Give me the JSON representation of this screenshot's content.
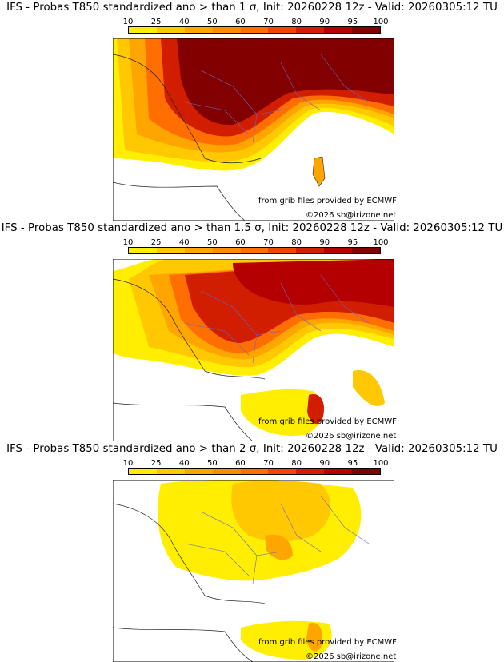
{
  "legend": {
    "ticks": [
      "10",
      "25",
      "40",
      "50",
      "60",
      "70",
      "80",
      "90",
      "95",
      "100"
    ],
    "colors": [
      "#ffee00",
      "#ffc800",
      "#ffa500",
      "#ff8c00",
      "#ff6e00",
      "#f04600",
      "#d21e00",
      "#b40000",
      "#820000"
    ]
  },
  "panels": [
    {
      "title": "IFS - Probas T850  standardized ano > than 1 σ, Init: 20260228 12z - Valid: 20260305:12 TU",
      "credit_source": "from grib files provided by ECMWF",
      "credit_copyright": "©2026 sb@irizone.net"
    },
    {
      "title": "IFS - Probas T850  standardized ano > than 1.5 σ, Init: 20260228 12z - Valid: 20260305:12 TU",
      "credit_source": "from grib files provided by ECMWF",
      "credit_copyright": "©2026 sb@irizone.net"
    },
    {
      "title": "IFS - Probas T850  standardized ano > than 2 σ, Init: 20260228 12z - Valid: 20260305:12 TU",
      "credit_source": "from grib files provided by ECMWF",
      "credit_copyright": "©2026 sb@irizone.net"
    }
  ]
}
